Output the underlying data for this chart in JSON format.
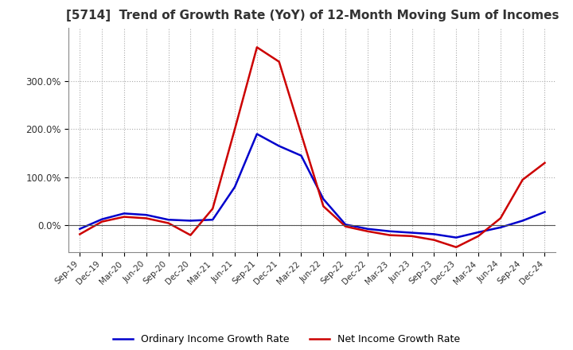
{
  "title": "[5714]  Trend of Growth Rate (YoY) of 12-Month Moving Sum of Incomes",
  "title_fontsize": 11,
  "x_labels": [
    "Sep-19",
    "Dec-19",
    "Mar-20",
    "Jun-20",
    "Sep-20",
    "Dec-20",
    "Mar-21",
    "Jun-21",
    "Sep-21",
    "Dec-21",
    "Mar-22",
    "Jun-22",
    "Sep-22",
    "Dec-22",
    "Mar-23",
    "Jun-23",
    "Sep-23",
    "Dec-23",
    "Mar-24",
    "Jun-24",
    "Sep-24",
    "Dec-24"
  ],
  "ordinary_income": [
    -0.07,
    0.13,
    0.25,
    0.22,
    0.12,
    0.1,
    0.12,
    0.8,
    1.9,
    1.65,
    1.45,
    0.55,
    0.02,
    -0.07,
    -0.12,
    -0.15,
    -0.18,
    -0.25,
    -0.14,
    -0.04,
    0.1,
    0.28
  ],
  "net_income": [
    -0.18,
    0.08,
    0.18,
    0.15,
    0.05,
    -0.2,
    0.35,
    2.0,
    3.7,
    3.4,
    1.9,
    0.4,
    -0.02,
    -0.12,
    -0.2,
    -0.22,
    -0.3,
    -0.45,
    -0.22,
    0.15,
    0.95,
    1.3
  ],
  "ordinary_color": "#0000cc",
  "net_color": "#cc0000",
  "ylim_min": -0.55,
  "ylim_max": 4.1,
  "yticks": [
    0.0,
    1.0,
    2.0,
    3.0
  ],
  "ytick_labels": [
    "0.0%",
    "100.0%",
    "200.0%",
    "300.0%"
  ],
  "background_color": "#ffffff",
  "grid_color": "#aaaaaa",
  "legend_ordinary": "Ordinary Income Growth Rate",
  "legend_net": "Net Income Growth Rate"
}
